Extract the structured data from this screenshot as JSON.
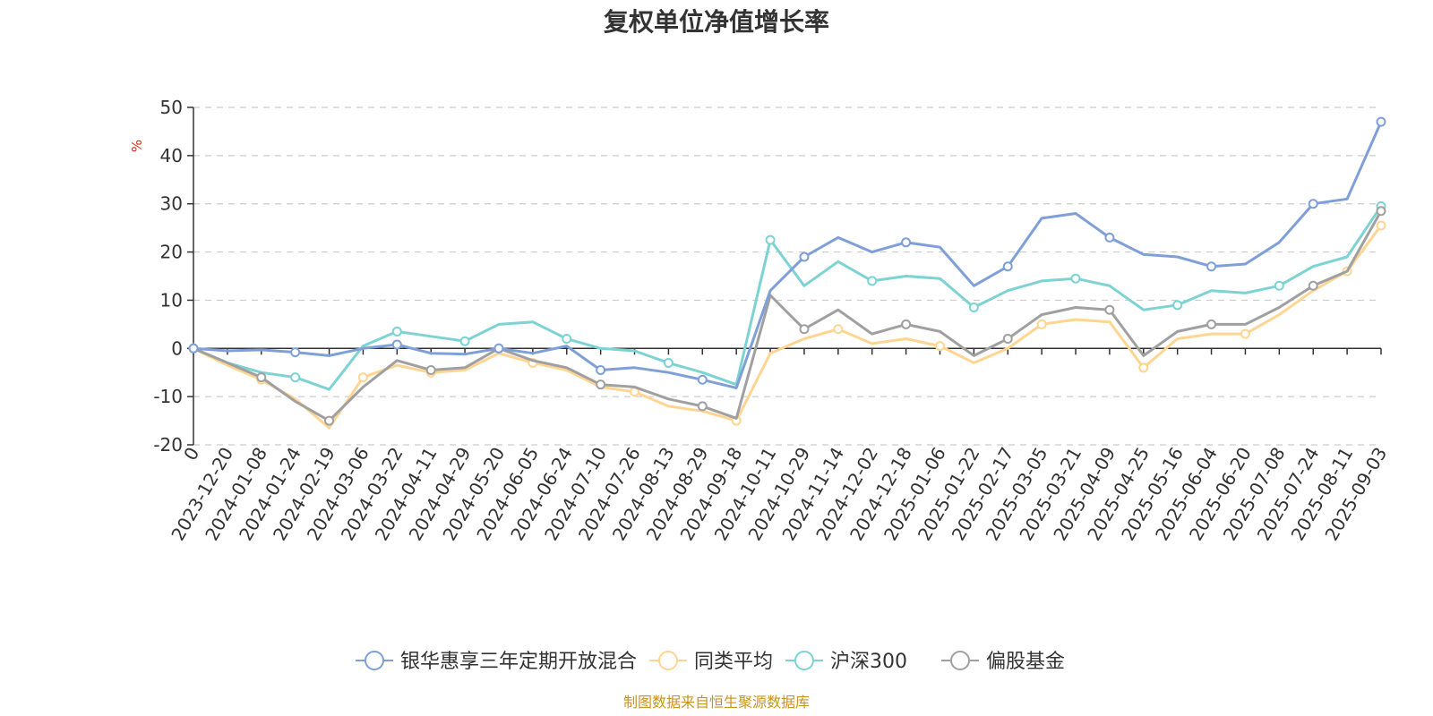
{
  "source_note": "制图数据来自恒生聚源数据库",
  "chart_data": {
    "type": "line",
    "title": "复权单位净值增长率",
    "ylabel": "%",
    "xlabel": "",
    "ylim": [
      -20,
      50
    ],
    "yticks": [
      50,
      40,
      30,
      20,
      10,
      0,
      -10,
      -20
    ],
    "grid": true,
    "legend_position": "bottom",
    "x_labels": [
      "0",
      "2023-12-20",
      "2024-01-08",
      "2024-01-24",
      "2024-02-19",
      "2024-03-06",
      "2024-03-22",
      "2024-04-11",
      "2024-04-29",
      "2024-05-20",
      "2024-06-05",
      "2024-06-24",
      "2024-07-10",
      "2024-07-26",
      "2024-08-13",
      "2024-08-29",
      "2024-09-18",
      "2024-10-11",
      "2024-10-29",
      "2024-11-14",
      "2024-12-02",
      "2024-12-18",
      "2025-01-06",
      "2025-01-22",
      "2025-02-17",
      "2025-03-05",
      "2025-03-21",
      "2025-04-09",
      "2025-04-25",
      "2025-05-16",
      "2025-06-04",
      "2025-06-20",
      "2025-07-08",
      "2025-07-24",
      "2025-08-11",
      "2025-09-03"
    ],
    "x": [
      0,
      1,
      2,
      3,
      4,
      5,
      6,
      7,
      8,
      9,
      10,
      11,
      12,
      13,
      14,
      15,
      16,
      17,
      18,
      19,
      20,
      21,
      22,
      23,
      24,
      25,
      26,
      27,
      28,
      29,
      30,
      31,
      32,
      33,
      34,
      35
    ],
    "series": [
      {
        "name": "银华惠享三年定期开放混合",
        "color": "#7f9fd8",
        "values": [
          0,
          -0.5,
          -0.3,
          -0.8,
          -1.5,
          0,
          0.8,
          -1,
          -1.2,
          0,
          -1,
          0.5,
          -4.5,
          -4,
          -5,
          -6.5,
          -8.2,
          12,
          19,
          23,
          20,
          22,
          21,
          13,
          17,
          27,
          28,
          23,
          19.5,
          19,
          17,
          17.5,
          22,
          30,
          31,
          47
        ]
      },
      {
        "name": "同类平均",
        "color": "#ffd591",
        "values": [
          0,
          -3.5,
          -6.5,
          -10.5,
          -16.5,
          -6,
          -3.5,
          -5,
          -4.5,
          -1,
          -3,
          -4.5,
          -8,
          -9,
          -12,
          -13,
          -15,
          -1,
          2,
          4,
          1,
          2,
          0.5,
          -3,
          0,
          5,
          6,
          5.5,
          -4,
          2,
          3,
          3,
          7,
          12,
          16,
          25.5
        ]
      },
      {
        "name": "沪深300",
        "color": "#7dd3d3",
        "values": [
          0,
          -3,
          -5,
          -6,
          -8.5,
          0.5,
          3.5,
          2.5,
          1.5,
          5,
          5.5,
          2,
          0,
          -0.5,
          -3,
          -5,
          -7.5,
          22.5,
          13,
          18,
          14,
          15,
          14.5,
          8.5,
          12,
          14,
          14.5,
          13,
          8,
          9,
          12,
          11.5,
          13,
          17,
          19,
          29.5
        ]
      },
      {
        "name": "偏股基金",
        "color": "#a0a0a0",
        "values": [
          0,
          -3,
          -6,
          -11,
          -15,
          -8,
          -2.5,
          -4.5,
          -4,
          0,
          -2.5,
          -4,
          -7.5,
          -8,
          -10.5,
          -12,
          -14.5,
          11,
          4,
          8,
          3,
          5,
          3.5,
          -1.5,
          2,
          7,
          8.5,
          8,
          -1.5,
          3.5,
          5,
          5,
          8.5,
          13,
          16,
          28.5
        ]
      }
    ],
    "series_order_draw": [
      2,
      1,
      3,
      0
    ],
    "markers": {
      "0": [
        0,
        3,
        6,
        9,
        12,
        15,
        18,
        21,
        24,
        27,
        30,
        33,
        35
      ],
      "1": [
        0,
        2,
        5,
        7,
        10,
        13,
        16,
        19,
        22,
        25,
        28,
        31,
        34,
        35
      ],
      "2": [
        0,
        3,
        6,
        8,
        11,
        14,
        17,
        20,
        23,
        26,
        29,
        32,
        35
      ],
      "3": [
        0,
        2,
        4,
        7,
        9,
        12,
        15,
        18,
        21,
        24,
        27,
        30,
        33,
        35
      ]
    }
  },
  "legend": [
    {
      "label": "银华惠享三年定期开放混合",
      "color": "#7f9fd8"
    },
    {
      "label": "同类平均",
      "color": "#ffd591"
    },
    {
      "label": "沪深300",
      "color": "#7dd3d3"
    },
    {
      "label": "偏股基金",
      "color": "#a0a0a0"
    }
  ]
}
